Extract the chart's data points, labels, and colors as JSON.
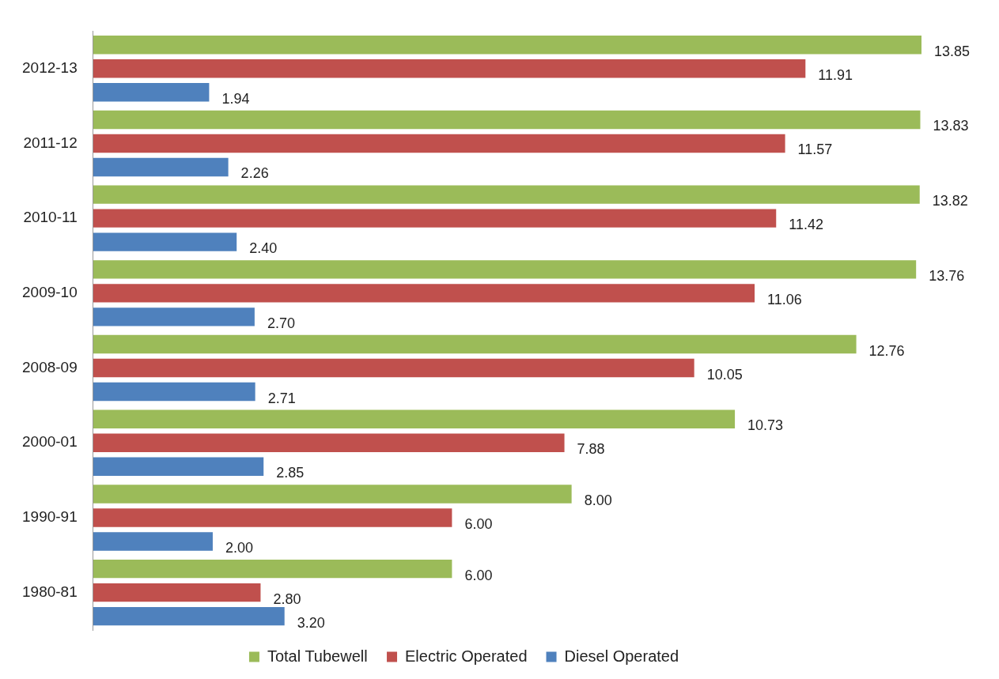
{
  "chart_data": {
    "type": "bar",
    "orientation": "horizontal",
    "categories": [
      "2012-13",
      "2011-12",
      "2010-11",
      "2009-10",
      "2008-09",
      "2000-01",
      "1990-91",
      "1980-81"
    ],
    "series": [
      {
        "name": "Total Tubewell",
        "color": "#9bbb59",
        "values": [
          13.85,
          13.83,
          13.82,
          13.76,
          12.76,
          10.73,
          8.0,
          6.0
        ],
        "value_labels": [
          "13.85",
          "13.83",
          "13.82",
          "13.76",
          "12.76",
          "10.73",
          "8.00",
          "6.00"
        ]
      },
      {
        "name": "Electric Operated",
        "color": "#c0504d",
        "values": [
          11.91,
          11.57,
          11.42,
          11.06,
          10.05,
          7.88,
          6.0,
          2.8
        ],
        "value_labels": [
          "11.91",
          "11.57",
          "11.42",
          "11.06",
          "10.05",
          "7.88",
          "6.00",
          "2.80"
        ]
      },
      {
        "name": "Diesel Operated",
        "color": "#4f81bd",
        "values": [
          1.94,
          2.26,
          2.4,
          2.7,
          2.71,
          2.85,
          2.0,
          3.2
        ],
        "value_labels": [
          "1.94",
          "2.26",
          "2.40",
          "2.70",
          "2.71",
          "2.85",
          "2.00",
          "3.20"
        ]
      }
    ],
    "grid": false,
    "legend": "bottom"
  }
}
